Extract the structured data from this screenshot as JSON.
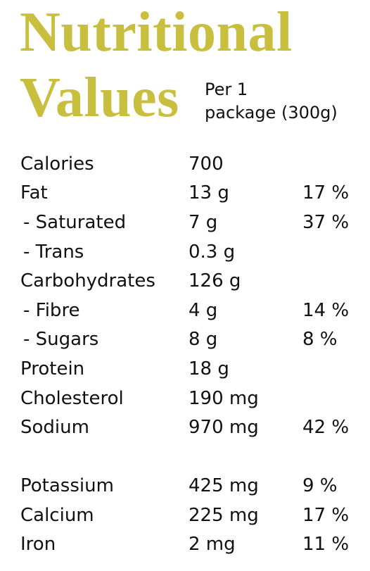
{
  "header": {
    "title_line1": "Nutritional",
    "title_line2": "Values",
    "serving_line1": "Per 1",
    "serving_line2": "package (300g)"
  },
  "nutrients": [
    {
      "label": "Calories",
      "amount": "700",
      "dv": ""
    },
    {
      "label": "Fat",
      "amount": "13 g",
      "dv": "17 %"
    },
    {
      "label": " - Saturated",
      "amount": "7 g",
      "dv": "37 %"
    },
    {
      "label": " - Trans",
      "amount": "0.3 g",
      "dv": ""
    },
    {
      "label": "Carbohydrates",
      "amount": "126 g",
      "dv": ""
    },
    {
      "label": " - Fibre",
      "amount": "4 g",
      "dv": "14 %"
    },
    {
      "label": " - Sugars",
      "amount": "8 g",
      "dv": "8 %"
    },
    {
      "label": "Protein",
      "amount": "18 g",
      "dv": ""
    },
    {
      "label": "Cholesterol",
      "amount": "190 mg",
      "dv": ""
    },
    {
      "label": "Sodium",
      "amount": "970 mg",
      "dv": "42 %"
    },
    {
      "label": "Potassium",
      "amount": "425 mg",
      "dv": "9 %"
    },
    {
      "label": "Calcium",
      "amount": "225 mg",
      "dv": "17 %"
    },
    {
      "label": "Iron",
      "amount": "2 mg",
      "dv": "11 %"
    }
  ],
  "colors": {
    "title": "#c9bf3e",
    "text": "#111111",
    "background": "#ffffff"
  }
}
